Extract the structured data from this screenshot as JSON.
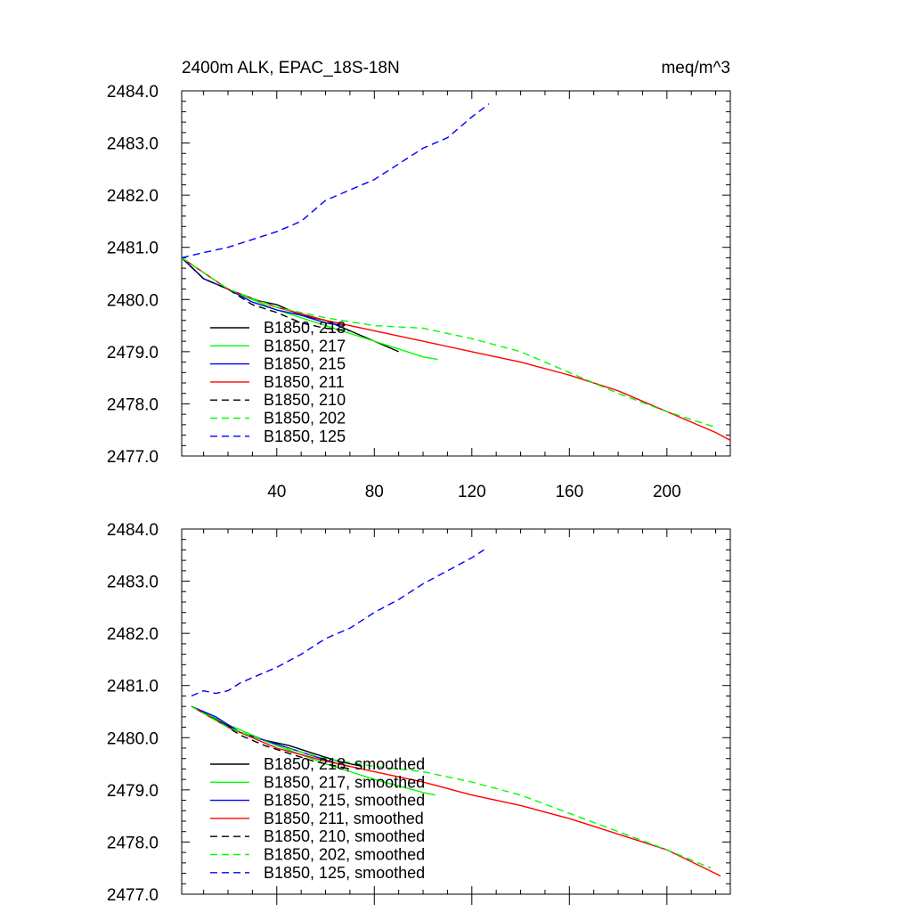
{
  "chart_data": [
    {
      "type": "line",
      "title": "2400m ALK, EPAC_18S-18N",
      "units": "meq/m^3",
      "xlabel": "",
      "ylabel": "",
      "xlim": [
        1,
        226
      ],
      "ylim": [
        2477.0,
        2484.0
      ],
      "x_ticks": [
        "40",
        "80",
        "120",
        "160",
        "200"
      ],
      "y_ticks": [
        "2484.0",
        "2483.0",
        "2482.0",
        "2481.0",
        "2480.0",
        "2479.0",
        "2478.0",
        "2477.0"
      ],
      "legend_position": "bottom-left",
      "series": [
        {
          "name": "B1850, 218",
          "color": "#000000",
          "dash": "solid",
          "x": [
            1,
            10,
            20,
            30,
            40,
            50,
            60,
            70,
            80,
            90
          ],
          "y": [
            2480.8,
            2480.4,
            2480.2,
            2480.0,
            2479.9,
            2479.7,
            2479.6,
            2479.4,
            2479.2,
            2479.0
          ]
        },
        {
          "name": "B1850, 217",
          "color": "#00ff00",
          "dash": "solid",
          "x": [
            1,
            20,
            40,
            60,
            80,
            100,
            106
          ],
          "y": [
            2480.8,
            2480.2,
            2479.8,
            2479.5,
            2479.2,
            2478.9,
            2478.85
          ]
        },
        {
          "name": "B1850, 215",
          "color": "#0000ff",
          "dash": "solid",
          "x": [
            1,
            10,
            20,
            30,
            40,
            50,
            60,
            68
          ],
          "y": [
            2480.8,
            2480.4,
            2480.2,
            2479.95,
            2479.8,
            2479.7,
            2479.55,
            2479.5
          ]
        },
        {
          "name": "B1850, 211",
          "color": "#ff0000",
          "dash": "solid",
          "x": [
            1,
            20,
            40,
            60,
            80,
            100,
            120,
            140,
            160,
            180,
            200,
            220,
            226
          ],
          "y": [
            2480.8,
            2480.2,
            2479.85,
            2479.6,
            2479.4,
            2479.2,
            2479.0,
            2478.8,
            2478.55,
            2478.25,
            2477.85,
            2477.45,
            2477.3
          ]
        },
        {
          "name": "B1850, 210",
          "color": "#000000",
          "dash": "dashed",
          "x": [
            1,
            10,
            20,
            30,
            40,
            50,
            60,
            70
          ],
          "y": [
            2480.8,
            2480.4,
            2480.2,
            2479.9,
            2479.75,
            2479.55,
            2479.45,
            2479.4
          ]
        },
        {
          "name": "B1850, 202",
          "color": "#00ff00",
          "dash": "dashed",
          "x": [
            1,
            20,
            40,
            60,
            80,
            100,
            120,
            140,
            160,
            180,
            200,
            220
          ],
          "y": [
            2480.8,
            2480.2,
            2479.85,
            2479.65,
            2479.5,
            2479.45,
            2479.25,
            2479.0,
            2478.6,
            2478.2,
            2477.85,
            2477.55
          ]
        },
        {
          "name": "B1850, 125",
          "color": "#0000ff",
          "dash": "dashed",
          "x": [
            1,
            10,
            20,
            30,
            40,
            50,
            60,
            70,
            80,
            90,
            100,
            110,
            120,
            127
          ],
          "y": [
            2480.8,
            2480.9,
            2481.0,
            2481.15,
            2481.3,
            2481.5,
            2481.9,
            2482.1,
            2482.3,
            2482.6,
            2482.9,
            2483.1,
            2483.5,
            2483.75
          ]
        }
      ]
    },
    {
      "type": "line",
      "title": "",
      "xlabel": "",
      "ylabel": "",
      "xlim": [
        1,
        226
      ],
      "ylim": [
        2477.0,
        2484.0
      ],
      "y_ticks": [
        "2484.0",
        "2483.0",
        "2482.0",
        "2481.0",
        "2480.0",
        "2479.0",
        "2478.0",
        "2477.0"
      ],
      "legend_position": "bottom-left",
      "series": [
        {
          "name": "B1850, 218, smoothed",
          "color": "#000000",
          "dash": "solid",
          "x": [
            5,
            15,
            25,
            35,
            45,
            55,
            65,
            75
          ],
          "y": [
            2480.6,
            2480.35,
            2480.1,
            2479.95,
            2479.85,
            2479.7,
            2479.55,
            2479.45
          ]
        },
        {
          "name": "B1850, 217, smoothed",
          "color": "#00ff00",
          "dash": "solid",
          "x": [
            5,
            20,
            40,
            60,
            80,
            100,
            105
          ],
          "y": [
            2480.6,
            2480.25,
            2479.85,
            2479.5,
            2479.2,
            2478.95,
            2478.9
          ]
        },
        {
          "name": "B1850, 215, smoothed",
          "color": "#0000ff",
          "dash": "solid",
          "x": [
            5,
            15,
            25,
            35,
            45,
            55,
            65,
            70
          ],
          "y": [
            2480.6,
            2480.4,
            2480.1,
            2479.95,
            2479.8,
            2479.65,
            2479.5,
            2479.45
          ]
        },
        {
          "name": "B1850, 211, smoothed",
          "color": "#ff0000",
          "dash": "solid",
          "x": [
            5,
            20,
            40,
            60,
            80,
            100,
            120,
            140,
            160,
            180,
            200,
            222
          ],
          "y": [
            2480.6,
            2480.2,
            2479.8,
            2479.55,
            2479.35,
            2479.15,
            2478.9,
            2478.7,
            2478.45,
            2478.15,
            2477.85,
            2477.35
          ]
        },
        {
          "name": "B1850, 210, smoothed",
          "color": "#000000",
          "dash": "dashed",
          "x": [
            5,
            15,
            25,
            35,
            45,
            55,
            65,
            70
          ],
          "y": [
            2480.6,
            2480.35,
            2480.05,
            2479.85,
            2479.7,
            2479.55,
            2479.45,
            2479.4
          ]
        },
        {
          "name": "B1850, 202, smoothed",
          "color": "#00ff00",
          "dash": "dashed",
          "x": [
            5,
            20,
            40,
            60,
            80,
            100,
            120,
            140,
            160,
            180,
            200,
            218
          ],
          "y": [
            2480.6,
            2480.2,
            2479.85,
            2479.6,
            2479.45,
            2479.35,
            2479.15,
            2478.9,
            2478.55,
            2478.2,
            2477.85,
            2477.5
          ]
        },
        {
          "name": "B1850, 125, smoothed",
          "color": "#0000ff",
          "dash": "dashed",
          "x": [
            5,
            10,
            15,
            20,
            25,
            30,
            40,
            50,
            60,
            70,
            80,
            90,
            100,
            110,
            120,
            125
          ],
          "y": [
            2480.8,
            2480.9,
            2480.85,
            2480.9,
            2481.05,
            2481.15,
            2481.35,
            2481.6,
            2481.9,
            2482.1,
            2482.4,
            2482.65,
            2482.95,
            2483.2,
            2483.45,
            2483.6
          ]
        }
      ]
    }
  ]
}
